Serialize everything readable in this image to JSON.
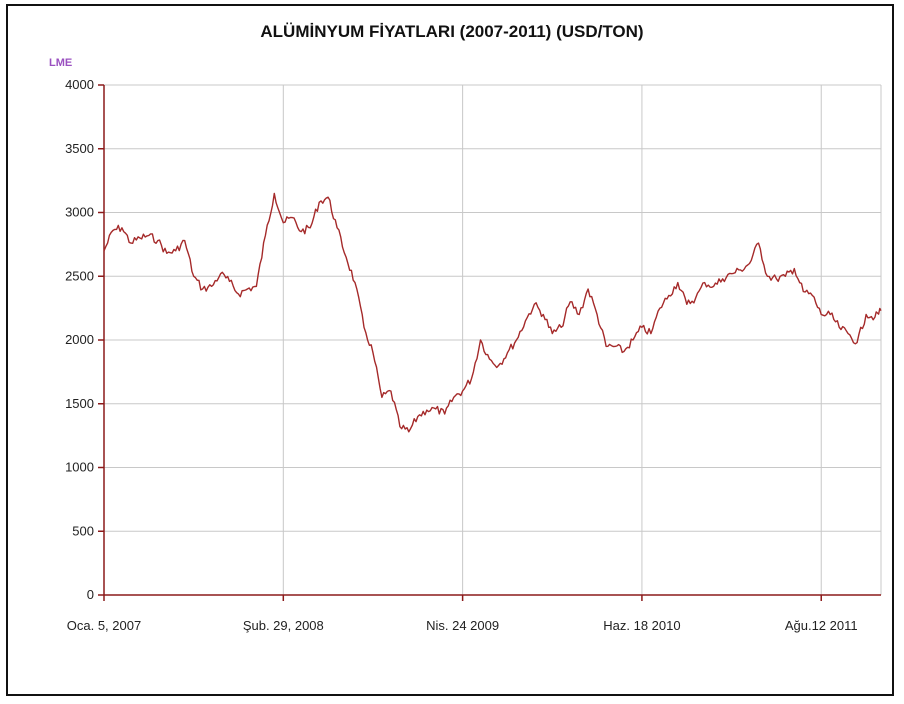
{
  "chart_data": {
    "type": "line",
    "title": "ALÜMİNYUM FİYATLARI (2007-2011) (USD/TON)",
    "ylabel": "LME",
    "xlabel": "",
    "ylim": [
      0,
      4000
    ],
    "yticks": [
      0,
      500,
      1000,
      1500,
      2000,
      2500,
      3000,
      3500,
      4000
    ],
    "xticks": [
      "Oca. 5, 2007",
      "Şub. 29, 2008",
      "Nis. 24 2009",
      "Haz. 18 2010",
      "Ağu.12 2011"
    ],
    "xtick_dates": [
      "2007-01-05",
      "2008-02-29",
      "2009-04-24",
      "2010-06-18",
      "2011-08-12"
    ],
    "x_range": [
      "2007-01-05",
      "2011-12-30"
    ],
    "grid": true,
    "colors": {
      "series": "#a52a2a",
      "axis": "#8b1a1a",
      "grid": "#c8c8c8",
      "ylabel": "#9a50c0"
    },
    "series": [
      {
        "x": [
          "2007-01-05",
          "2007-01-26",
          "2007-02-16",
          "2007-03-09",
          "2007-03-30",
          "2007-04-20",
          "2007-05-11",
          "2007-06-01",
          "2007-06-22",
          "2007-07-13",
          "2007-08-03",
          "2007-08-24",
          "2007-09-14",
          "2007-10-05",
          "2007-10-26",
          "2007-11-16",
          "2007-12-07",
          "2007-12-28",
          "2008-01-18",
          "2008-02-08",
          "2008-02-29",
          "2008-03-21",
          "2008-04-11",
          "2008-05-02",
          "2008-05-23",
          "2008-06-13",
          "2008-07-04",
          "2008-07-25",
          "2008-08-15",
          "2008-09-05",
          "2008-09-26",
          "2008-10-17",
          "2008-11-07",
          "2008-11-28",
          "2008-12-19",
          "2009-01-09",
          "2009-01-30",
          "2009-02-20",
          "2009-03-13",
          "2009-04-03",
          "2009-04-24",
          "2009-05-15",
          "2009-06-05",
          "2009-06-26",
          "2009-07-17",
          "2009-08-07",
          "2009-08-28",
          "2009-09-18",
          "2009-10-09",
          "2009-10-30",
          "2009-11-20",
          "2009-12-11",
          "2010-01-01",
          "2010-01-22",
          "2010-02-12",
          "2010-03-05",
          "2010-03-26",
          "2010-04-16",
          "2010-05-07",
          "2010-05-28",
          "2010-06-18",
          "2010-07-09",
          "2010-07-30",
          "2010-08-20",
          "2010-09-10",
          "2010-10-01",
          "2010-10-22",
          "2010-11-12",
          "2010-12-03",
          "2010-12-24",
          "2011-01-14",
          "2011-02-04",
          "2011-02-25",
          "2011-03-18",
          "2011-04-08",
          "2011-04-29",
          "2011-05-20",
          "2011-06-10",
          "2011-07-01",
          "2011-07-22",
          "2011-08-12",
          "2011-09-02",
          "2011-09-23",
          "2011-10-14",
          "2011-11-04",
          "2011-11-25",
          "2011-12-16",
          "2011-12-30"
        ],
        "values": [
          2700,
          2860,
          2880,
          2760,
          2800,
          2820,
          2780,
          2680,
          2700,
          2780,
          2500,
          2400,
          2420,
          2520,
          2460,
          2360,
          2400,
          2420,
          2820,
          3150,
          2920,
          2960,
          2850,
          2880,
          3080,
          3120,
          2880,
          2650,
          2450,
          2100,
          1900,
          1550,
          1600,
          1320,
          1280,
          1400,
          1450,
          1460,
          1420,
          1550,
          1600,
          1700,
          2000,
          1850,
          1800,
          1900,
          2000,
          2150,
          2280,
          2200,
          2050,
          2100,
          2300,
          2200,
          2400,
          2200,
          1950,
          1950,
          1910,
          2000,
          2100,
          2050,
          2250,
          2350,
          2450,
          2280,
          2330,
          2450,
          2420,
          2480,
          2520,
          2550,
          2600,
          2760,
          2500,
          2480,
          2500,
          2560,
          2380,
          2350,
          2200,
          2200,
          2100,
          2050,
          1980,
          2200,
          2180,
          2230
        ]
      }
    ]
  }
}
